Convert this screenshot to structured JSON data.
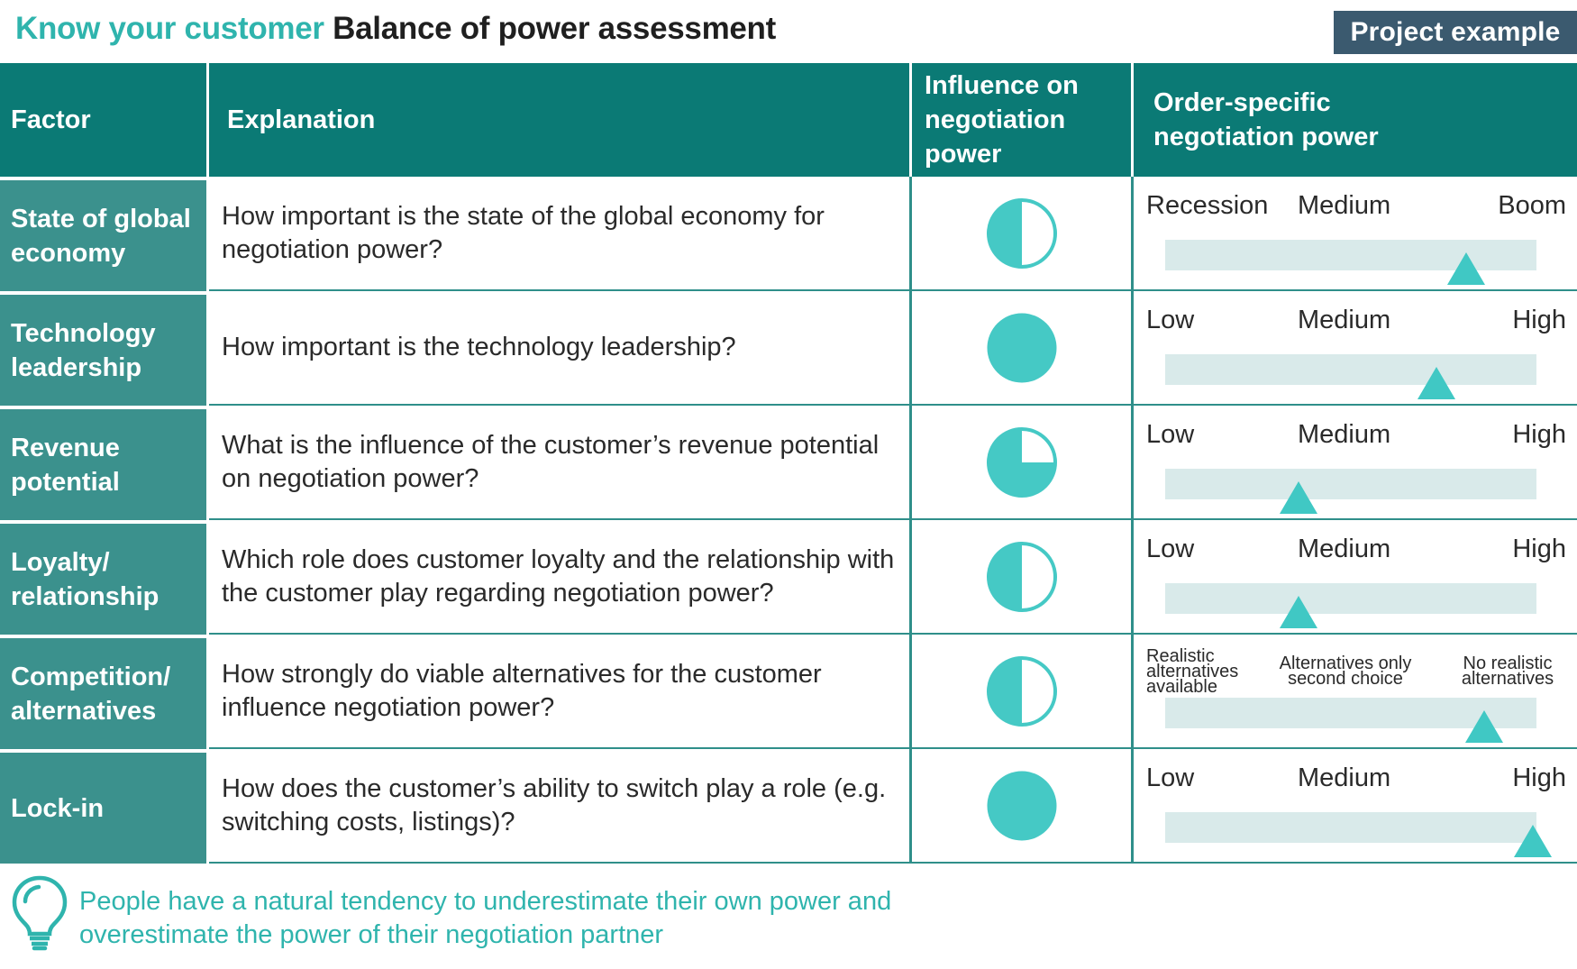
{
  "header": {
    "title_accent": "Know your customer",
    "title_main": "Balance of power assessment",
    "badge": "Project example"
  },
  "table": {
    "columns": [
      "Factor",
      "Explanation",
      "Influence on negotiation power",
      "Order-specific negotiation power"
    ],
    "rows": [
      {
        "factor": "State of global economy",
        "explanation": "How important is the state of the global economy for negotiation power?",
        "influence": 0.5,
        "scale": {
          "left": "Recession",
          "mid": "Medium",
          "right": "Boom",
          "small": false
        },
        "position": 0.81
      },
      {
        "factor": "Technology leadership",
        "explanation": "How important is the technology leadership?",
        "influence": 1.0,
        "scale": {
          "left": "Low",
          "mid": "Medium",
          "right": "High",
          "small": false
        },
        "position": 0.73
      },
      {
        "factor": "Revenue potential",
        "explanation": "What is the influence of the customer’s revenue potential on negotiation power?",
        "influence": 0.75,
        "scale": {
          "left": "Low",
          "mid": "Medium",
          "right": "High",
          "small": false
        },
        "position": 0.36
      },
      {
        "factor": "Loyalty/ relationship",
        "explanation": "Which role does customer loyalty and the relationship with the customer play regarding negotiation power?",
        "influence": 0.5,
        "scale": {
          "left": "Low",
          "mid": "Medium",
          "right": "High",
          "small": false
        },
        "position": 0.36
      },
      {
        "factor": "Competition/ alternatives",
        "explanation": "How strongly do viable alternatives for the customer influence negotiation power?",
        "influence": 0.5,
        "scale": {
          "left": "Realistic alternatives available",
          "mid": "Alternatives only second choice",
          "right": "No realistic alternatives",
          "small": true
        },
        "position": 0.86
      },
      {
        "factor": "Lock-in",
        "explanation": "How does the customer’s ability to switch play a role (e.g. switching costs, listings)?",
        "influence": 1.0,
        "scale": {
          "left": "Low",
          "mid": "Medium",
          "right": "High",
          "small": false
        },
        "position": 0.99
      }
    ]
  },
  "tip": {
    "icon": "lightbulb-icon",
    "text": "People have a natural tendency to underestimate their own power and overestimate the power of their negotiation partner"
  },
  "colors": {
    "accent": "#2fb4ad",
    "header_bg": "#0b7a75",
    "factor_bg": "#3b918d",
    "badge_bg": "#3b5a6f",
    "harvey_fill": "#45c9c5",
    "track": "#d9eaea"
  }
}
